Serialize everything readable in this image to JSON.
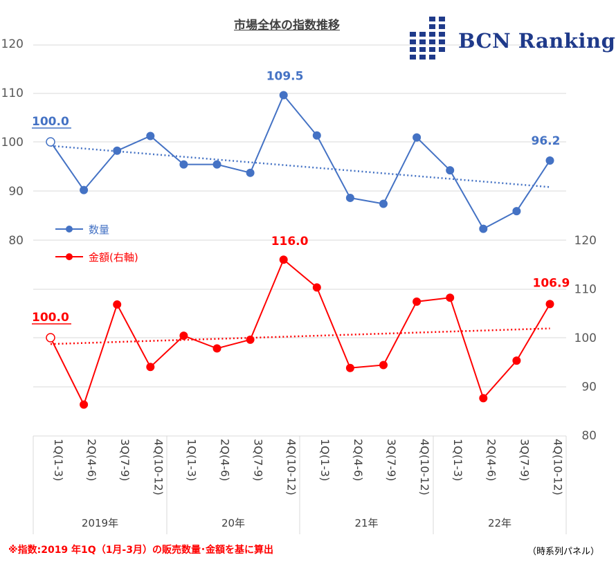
{
  "title": "市場全体の指数推移",
  "logo": {
    "text": "BCN Ranking",
    "color": "#1f3a8a"
  },
  "footnote": "※指数:2019 年1Q（1月-3月）の販売数量･金額を基に算出",
  "source": "（時系列パネル）",
  "legend": {
    "quantity": "数量",
    "amount": "金額(右軸)"
  },
  "colors": {
    "quantity": "#4472c4",
    "amount": "#ff0000",
    "grid": "#d9d9d9",
    "axis": "#595959"
  },
  "chart_data": {
    "type": "line",
    "categories": [
      "1Q(1-3)",
      "2Q(4-6)",
      "3Q(7-9)",
      "4Q(10-12)",
      "1Q(1-3)",
      "2Q(4-6)",
      "3Q(7-9)",
      "4Q(10-12)",
      "1Q(1-3)",
      "2Q(4-6)",
      "3Q(7-9)",
      "4Q(10-12)",
      "1Q(1-3)",
      "2Q(4-6)",
      "3Q(7-9)",
      "4Q(10-12)"
    ],
    "year_groups": [
      "2019年",
      "20年",
      "21年",
      "22年"
    ],
    "series": [
      {
        "name": "数量",
        "axis": "left",
        "color": "#4472c4",
        "values": [
          100.0,
          90.2,
          98.2,
          101.2,
          95.4,
          95.4,
          93.7,
          109.5,
          101.3,
          88.6,
          87.4,
          100.9,
          94.2,
          82.3,
          85.9,
          96.2
        ],
        "trend": [
          99.2,
          90.8
        ]
      },
      {
        "name": "金額(右軸)",
        "axis": "right",
        "color": "#ff0000",
        "values": [
          100.0,
          86.3,
          106.8,
          94.0,
          100.4,
          97.8,
          99.6,
          116.0,
          110.3,
          93.8,
          94.4,
          107.4,
          108.2,
          87.6,
          95.3,
          106.9
        ],
        "trend": [
          98.7,
          101.9
        ]
      }
    ],
    "left_axis": {
      "ticks": [
        80,
        90,
        100,
        110,
        120
      ]
    },
    "right_axis": {
      "ticks": [
        80,
        90,
        100,
        110,
        120
      ]
    },
    "labels": [
      {
        "series": 0,
        "index": 0,
        "text": "100.0"
      },
      {
        "series": 0,
        "index": 7,
        "text": "109.5"
      },
      {
        "series": 0,
        "index": 15,
        "text": "96.2"
      },
      {
        "series": 1,
        "index": 0,
        "text": "100.0"
      },
      {
        "series": 1,
        "index": 7,
        "text": "116.0"
      },
      {
        "series": 1,
        "index": 15,
        "text": "106.9"
      }
    ]
  }
}
